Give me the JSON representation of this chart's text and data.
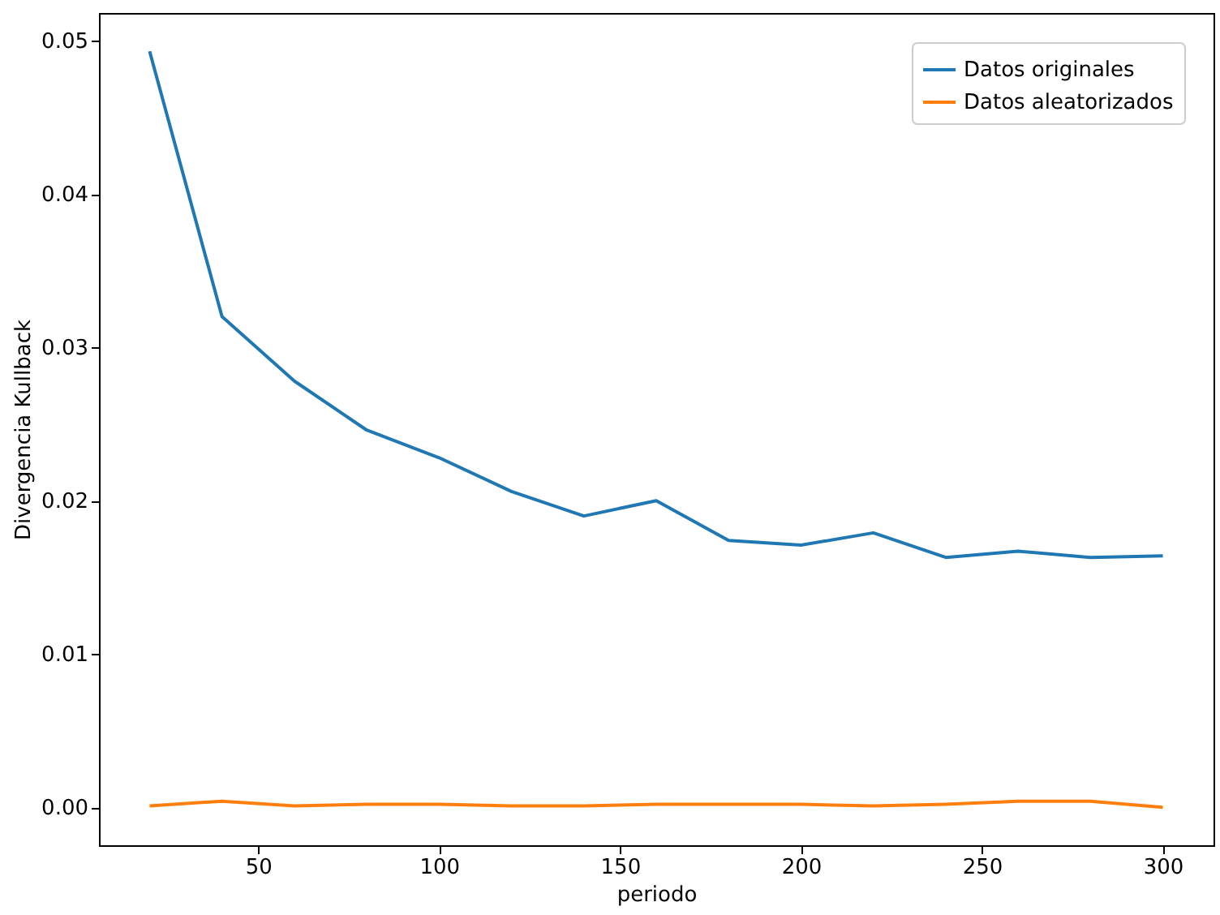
{
  "chart_data": {
    "type": "line",
    "xlabel": "periodo",
    "ylabel": "Divergencia Kullback",
    "x": [
      20,
      40,
      60,
      80,
      100,
      120,
      140,
      160,
      180,
      200,
      220,
      240,
      260,
      280,
      300
    ],
    "series": [
      {
        "name": "Datos originales",
        "color": "#1f77b4",
        "values": [
          0.0493,
          0.032,
          0.0278,
          0.0246,
          0.0228,
          0.0206,
          0.019,
          0.02,
          0.0174,
          0.0171,
          0.0179,
          0.0163,
          0.0167,
          0.0163,
          0.0164
        ]
      },
      {
        "name": "Datos aleatorizados",
        "color": "#ff7f0e",
        "values": [
          0.0001,
          0.0004,
          0.0001,
          0.0002,
          0.0002,
          0.0001,
          0.0001,
          0.0002,
          0.0002,
          0.0002,
          0.0001,
          0.0002,
          0.0004,
          0.0004,
          0.0
        ]
      }
    ],
    "xlim": [
      6,
      314
    ],
    "xticks": [
      50,
      100,
      150,
      200,
      250,
      300
    ],
    "ylim": [
      -0.00247,
      0.0518
    ],
    "yticks": [
      {
        "value": 0,
        "label": "0.00"
      },
      {
        "value": 0.01,
        "label": "0.01"
      },
      {
        "value": 0.02,
        "label": "0.02"
      },
      {
        "value": 0.03,
        "label": "0.03"
      },
      {
        "value": 0.04,
        "label": "0.04"
      },
      {
        "value": 0.05,
        "label": "0.05"
      }
    ],
    "legend": "top right"
  }
}
